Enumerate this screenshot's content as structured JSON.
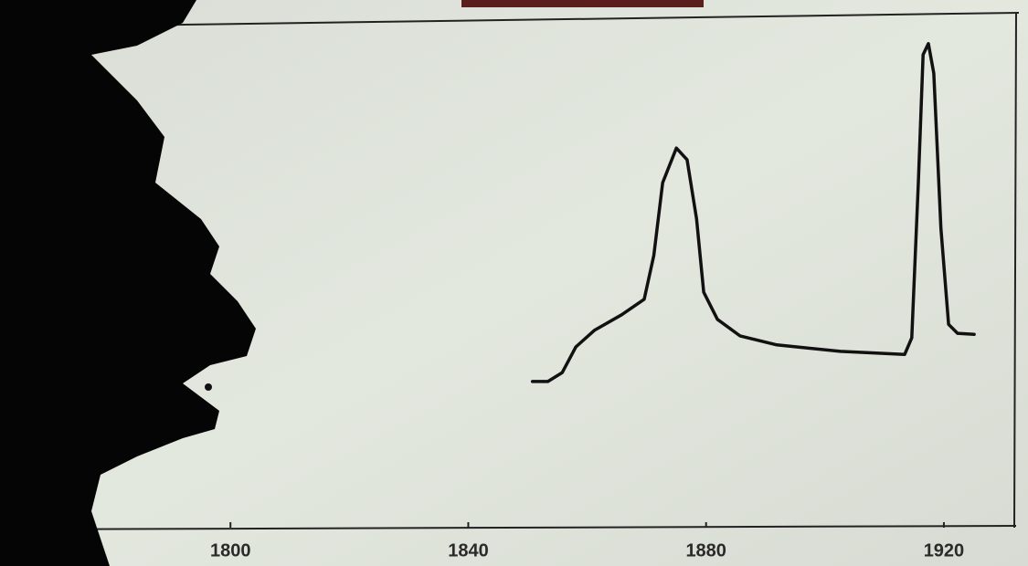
{
  "chart_data": {
    "type": "line",
    "x": [
      1850.8,
      1853.4,
      1855.8,
      1858.1,
      1861.2,
      1865.8,
      1869.6,
      1871.2,
      1872.7,
      1875.0,
      1876.8,
      1878.4,
      1879.6,
      1881.9,
      1885.7,
      1891.9,
      1902.6,
      1913.4,
      1914.6,
      1915.7,
      1916.5,
      1917.4,
      1918.3,
      1919.5,
      1920.8,
      1922.3,
      1925.1
    ],
    "values": [
      29.1,
      29.1,
      30.9,
      36.0,
      39.3,
      42.4,
      45.5,
      54.2,
      68.7,
      75.6,
      73.3,
      61.5,
      46.9,
      41.5,
      38.2,
      36.4,
      35.1,
      34.5,
      37.8,
      68.7,
      94.2,
      96.4,
      90.5,
      59.6,
      40.5,
      38.7,
      38.5
    ],
    "color": "#111111",
    "xlim": [
      1762,
      1930
    ],
    "xticks": [
      1800,
      1840,
      1880,
      1920
    ],
    "ylim": [
      0,
      100
    ]
  }
}
